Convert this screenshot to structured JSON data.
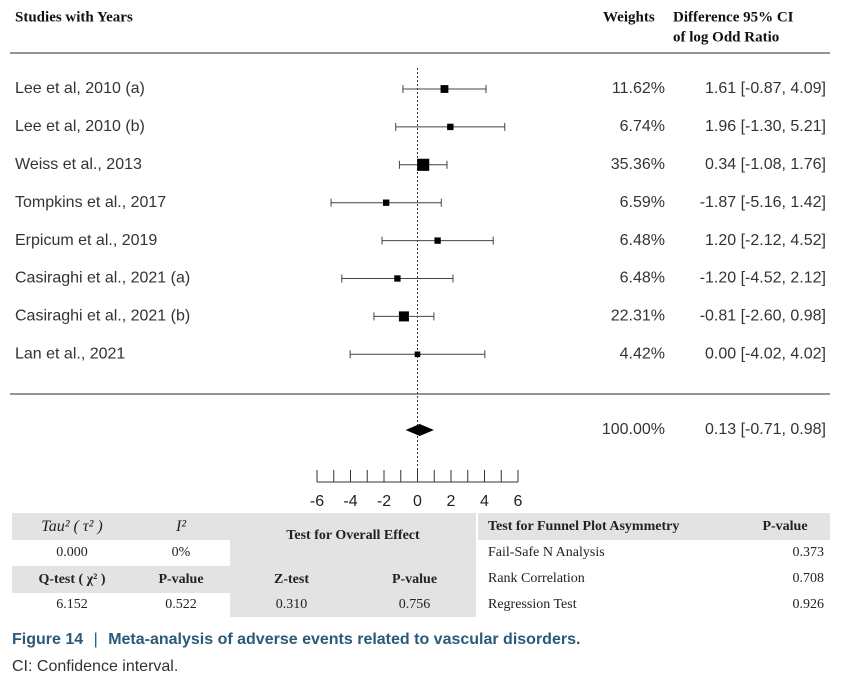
{
  "chart_data": {
    "type": "forest",
    "header": {
      "study": "Studies with Years",
      "weight": "Weights",
      "ci": [
        "Difference 95% CI",
        "of log Odd Ratio"
      ]
    },
    "categories": [
      "Lee et al, 2010 (a)",
      "Lee et al, 2010 (b)",
      "Weiss et al., 2013",
      "Tompkins et al., 2017",
      "Erpicum et al., 2019",
      "Casiraghi et al., 2021 (a)",
      "Casiraghi et al., 2021 (b)",
      "Lan et al., 2021"
    ],
    "values": [
      1.61,
      1.96,
      0.34,
      -1.87,
      1.2,
      -1.2,
      -0.81,
      0.0
    ],
    "lower": [
      -0.87,
      -1.3,
      -1.08,
      -5.16,
      -2.12,
      -4.52,
      -2.6,
      -4.02
    ],
    "upper": [
      4.09,
      5.21,
      1.76,
      1.42,
      4.52,
      2.12,
      0.98,
      4.02
    ],
    "weights": [
      11.62,
      6.74,
      35.36,
      6.59,
      6.48,
      6.48,
      22.31,
      4.42
    ],
    "weight_labels": [
      "11.62%",
      "6.74%",
      "35.36%",
      "6.59%",
      "6.48%",
      "6.48%",
      "22.31%",
      "4.42%"
    ],
    "value_labels": [
      "1.61 [-0.87, 4.09]",
      "1.96 [-1.30, 5.21]",
      "0.34 [-1.08, 1.76]",
      "-1.87 [-5.16, 1.42]",
      "1.20 [-2.12, 4.52]",
      "-1.20 [-4.52, 2.12]",
      "-0.81 [-2.60, 0.98]",
      "0.00 [-4.02, 4.02]"
    ],
    "summary": {
      "value": 0.13,
      "lower": -0.71,
      "upper": 0.98,
      "weight": 100,
      "weight_label": "100.00%",
      "value_label": "0.13 [-0.71, 0.98]"
    },
    "xlim": [
      -6,
      6
    ],
    "xticks": [
      -6,
      -4,
      -2,
      0,
      2,
      4,
      6
    ],
    "minor_xticks": [
      -5,
      -3,
      -1,
      1,
      3,
      5
    ],
    "color": "#000000"
  },
  "heterogeneity": {
    "tau_header": "Tau² ( τ² )",
    "i_header": "I²",
    "tau": "0.000",
    "i": "0%",
    "q_header": "Q-test ( χ² )",
    "p_header": "P-value",
    "q": "6.152",
    "p": "0.522"
  },
  "overall_effect": {
    "title": "Test for Overall Effect",
    "z_header": "Z-test",
    "p_header": "P-value",
    "z": "0.310",
    "p": "0.756"
  },
  "funnel": {
    "title": "Test for Funnel Plot Asymmetry",
    "p_header": "P-value",
    "rows": [
      [
        "Fail-Safe N Analysis",
        "0.373"
      ],
      [
        "Rank Correlation",
        "0.708"
      ],
      [
        "Regression Test",
        "0.926"
      ]
    ]
  },
  "caption": {
    "label": "Figure 14",
    "separator": "|",
    "title": "Meta-analysis of adverse events related to vascular disorders.",
    "note": "CI: Confidence interval."
  }
}
